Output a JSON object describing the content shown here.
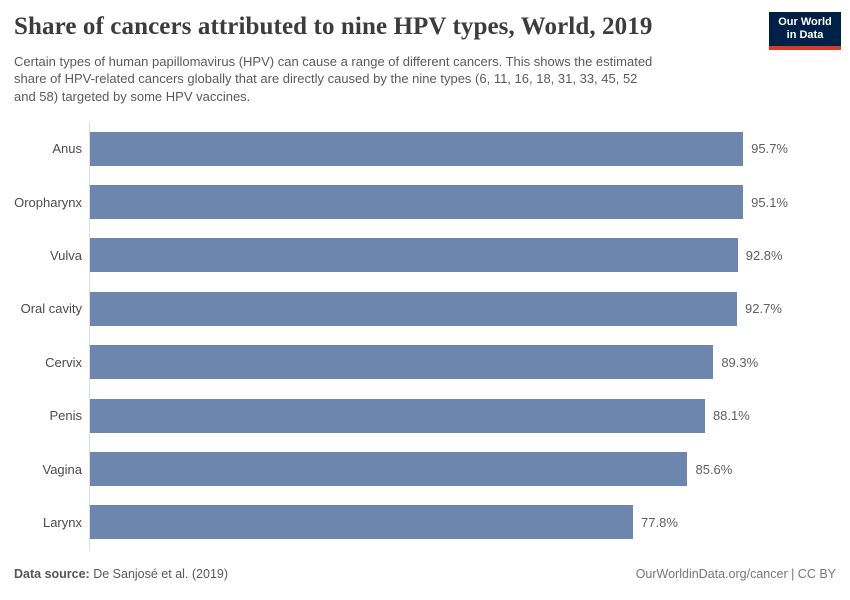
{
  "header": {
    "title": "Share of cancers attributed to nine HPV types, World, 2019",
    "subtitle": "Certain types of human papillomavirus (HPV) can cause a range of different cancers. This shows the estimated\nshare of HPV-related cancers globally that are directly caused by the nine types (6, 11, 16, 18, 31, 33, 45, 52\nand 58) targeted by some HPV vaccines."
  },
  "logo": {
    "line1": "Our World",
    "line2": "in Data"
  },
  "chart_data": {
    "type": "bar",
    "orientation": "horizontal",
    "title": "Share of cancers attributed to nine HPV types, World, 2019",
    "categories": [
      "Anus",
      "Oropharynx",
      "Vulva",
      "Oral cavity",
      "Cervix",
      "Penis",
      "Vagina",
      "Larynx"
    ],
    "values": [
      95.7,
      95.1,
      92.8,
      92.7,
      89.3,
      88.1,
      85.6,
      77.8
    ],
    "value_labels": [
      "95.7%",
      "95.1%",
      "92.8%",
      "92.7%",
      "89.3%",
      "88.1%",
      "85.6%",
      "77.8%"
    ],
    "unit": "%",
    "xlim": [
      0,
      100
    ],
    "grid": false,
    "legend": "none",
    "bar_color": "#6d86ae"
  },
  "footer": {
    "source_label": "Data source:",
    "source_value": " De Sanjosé et al. (2019)",
    "credit": "OurWorldinData.org/cancer | CC BY"
  },
  "colors": {
    "title_text": "#3c3c3c",
    "subtitle_text": "#5a5a5a",
    "bar": "#6d86ae",
    "axis_line": "#dedede",
    "logo_background": "#002147",
    "logo_stripe": "#d93a2b"
  }
}
